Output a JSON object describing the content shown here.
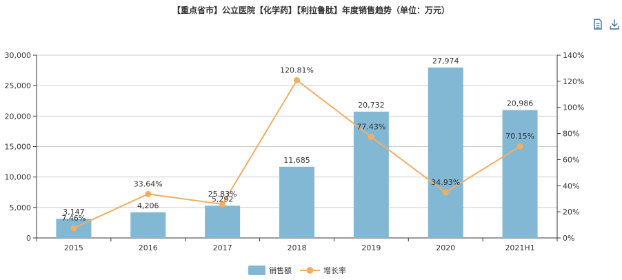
{
  "toolbar": {
    "icons": [
      "data-view-icon",
      "download-icon"
    ]
  },
  "chart_data": {
    "type": "bar",
    "title": "【重点省市】公立医院【化学药】【利拉鲁肽】年度销售趋势（单位：万元）",
    "categories": [
      "2015",
      "2016",
      "2017",
      "2018",
      "2019",
      "2020",
      "2021H1"
    ],
    "series": [
      {
        "name": "销售额",
        "type": "bar",
        "axis": "left",
        "color": "#82b8d4",
        "values": [
          3147,
          4206,
          5292,
          11685,
          20732,
          27974,
          20986
        ],
        "labels": [
          "3,147",
          "4,206",
          "5,292",
          "11,685",
          "20,732",
          "27,974",
          "20,986"
        ]
      },
      {
        "name": "增长率",
        "type": "line",
        "axis": "right",
        "color": "#f5ad62",
        "values": [
          7.46,
          33.64,
          25.83,
          120.81,
          77.43,
          34.93,
          70.15
        ],
        "labels": [
          "7.46%",
          "33.64%",
          "25.83%",
          "120.81%",
          "77.43%",
          "34.93%",
          "70.15%"
        ]
      }
    ],
    "y_left": {
      "ylim": [
        0,
        30000
      ],
      "ticks": [
        "0",
        "5,000",
        "10,000",
        "15,000",
        "20,000",
        "25,000",
        "30,000"
      ]
    },
    "y_right": {
      "ylim": [
        0,
        140
      ],
      "unit": "%",
      "ticks": [
        "0%",
        "20%",
        "40%",
        "60%",
        "80%",
        "100%",
        "120%",
        "140%"
      ]
    },
    "grid": true,
    "legend_position": "bottom-center"
  }
}
